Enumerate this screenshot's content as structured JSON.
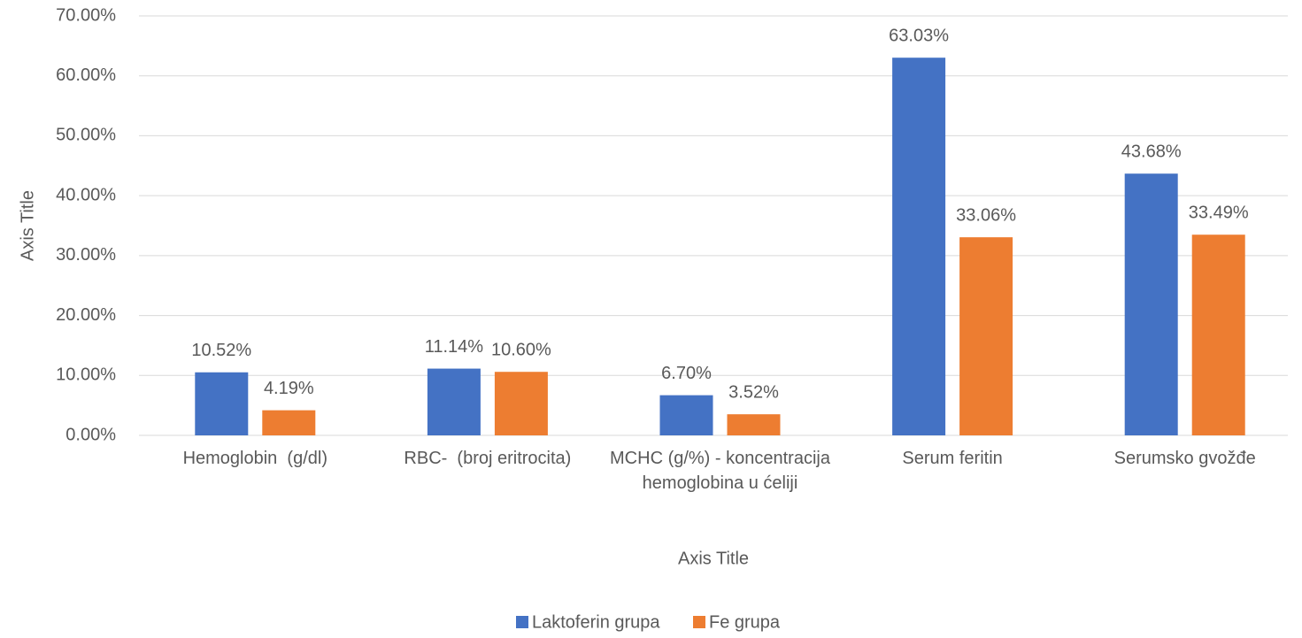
{
  "chart_data": {
    "type": "bar",
    "categories": [
      "Hemoglobin  (g/dl)",
      "RBC-  (broj eritrocita)",
      "MCHC (g/%) - koncentracija hemoglobina u ćeliji",
      "Serum feritin",
      "Serumsko gvožđe"
    ],
    "series": [
      {
        "name": "Laktoferin grupa",
        "color": "#4472c4",
        "values": [
          10.52,
          11.14,
          6.7,
          63.03,
          43.68
        ],
        "value_labels": [
          "10.52%",
          "11.14%",
          "6.70%",
          "63.03%",
          "43.68%"
        ]
      },
      {
        "name": "Fe grupa",
        "color": "#ed7d31",
        "values": [
          4.19,
          10.6,
          3.52,
          33.06,
          33.49
        ],
        "value_labels": [
          "4.19%",
          "10.60%",
          "3.52%",
          "33.06%",
          "33.49%"
        ]
      }
    ],
    "xlabel": "Axis Title",
    "ylabel": "Axis Title",
    "ylim": [
      0,
      70
    ],
    "yticks": [
      {
        "value": 0,
        "label": "0.00%"
      },
      {
        "value": 10,
        "label": "10.00%"
      },
      {
        "value": 20,
        "label": "20.00%"
      },
      {
        "value": 30,
        "label": "30.00%"
      },
      {
        "value": 40,
        "label": "40.00%"
      },
      {
        "value": 50,
        "label": "50.00%"
      },
      {
        "value": 60,
        "label": "60.00%"
      },
      {
        "value": 70,
        "label": "70.00%"
      }
    ],
    "grid": true,
    "legend": "bottom"
  }
}
